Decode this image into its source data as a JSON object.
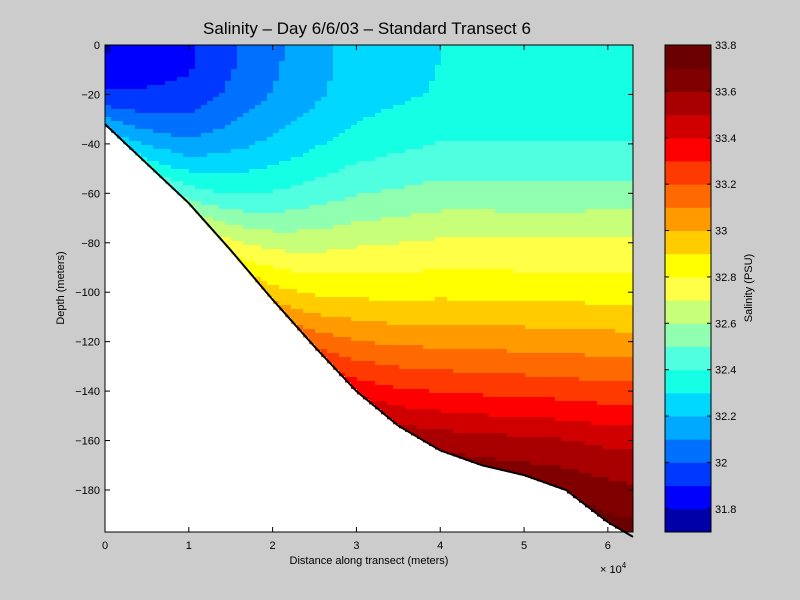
{
  "chart_data": {
    "type": "heatmap",
    "subtype": "filled-contour",
    "title": "Salinity – Day 6/6/03 – Standard Transect 6",
    "xlabel": "Distance along transect (meters)",
    "ylabel": "Depth (meters)",
    "x_exponent_label": "× 10",
    "x_exponent_power": "4",
    "x_scale_factor": 10000,
    "xlim": [
      0,
      63000
    ],
    "ylim": [
      -197,
      0
    ],
    "xticks": [
      0,
      10000,
      20000,
      30000,
      40000,
      50000,
      60000
    ],
    "xtick_labels": [
      "0",
      "1",
      "2",
      "3",
      "4",
      "5",
      "6"
    ],
    "yticks": [
      0,
      -20,
      -40,
      -60,
      -80,
      -100,
      -120,
      -140,
      -160,
      -180
    ],
    "ytick_labels": [
      "0",
      "−20",
      "−40",
      "−60",
      "−80",
      "−100",
      "−120",
      "−140",
      "−160",
      "−180"
    ],
    "bathymetry": {
      "x": [
        0,
        5000,
        10000,
        15000,
        20000,
        25000,
        30000,
        35000,
        40000,
        45000,
        50000,
        55000,
        60000,
        63000
      ],
      "depth": [
        -32,
        -48,
        -64,
        -83,
        -103,
        -122,
        -140,
        -154,
        -164,
        -170,
        -174,
        -180,
        -193,
        -199
      ]
    },
    "colorbar": {
      "label": "Salinity (PSU)",
      "range": [
        31.7,
        33.8
      ],
      "levels": [
        31.7,
        31.8,
        31.9,
        32.0,
        32.1,
        32.2,
        32.3,
        32.4,
        32.5,
        32.6,
        32.7,
        32.8,
        32.9,
        33.0,
        33.1,
        33.2,
        33.3,
        33.4,
        33.5,
        33.6,
        33.7,
        33.8
      ],
      "colors": [
        "#0000a8",
        "#0000ff",
        "#0038ff",
        "#0070ff",
        "#00a8ff",
        "#00d8ff",
        "#14ffe4",
        "#50ffe0",
        "#90ffb0",
        "#c8ff78",
        "#ffff48",
        "#ffff00",
        "#ffcc00",
        "#ff9a00",
        "#ff6a00",
        "#ff3a00",
        "#ff0000",
        "#d00000",
        "#a80000",
        "#800000",
        "#6a0000"
      ],
      "ticks": [
        31.8,
        32.0,
        32.2,
        32.4,
        32.6,
        32.8,
        33.0,
        33.2,
        33.4,
        33.6,
        33.8
      ],
      "tick_labels": [
        "31.8",
        "32",
        "32.2",
        "32.4",
        "32.6",
        "32.8",
        "33",
        "33.2",
        "33.4",
        "33.6",
        "33.8"
      ]
    },
    "salinity_profile_at_shelf_edge": {
      "x": 63000,
      "depth": [
        0,
        -20,
        -40,
        -60,
        -80,
        -100,
        -120,
        -140,
        -160,
        -180
      ],
      "salinity": [
        32.3,
        32.3,
        32.45,
        32.65,
        32.9,
        33.05,
        33.25,
        33.45,
        33.7,
        33.75
      ]
    },
    "surface_salinity": {
      "x": [
        0,
        10000,
        20000,
        30000,
        40000,
        50000,
        60000
      ],
      "salinity": [
        31.75,
        31.8,
        32.0,
        32.2,
        32.3,
        32.3,
        32.3
      ]
    },
    "grid": false,
    "legend": "colorbar-right"
  }
}
